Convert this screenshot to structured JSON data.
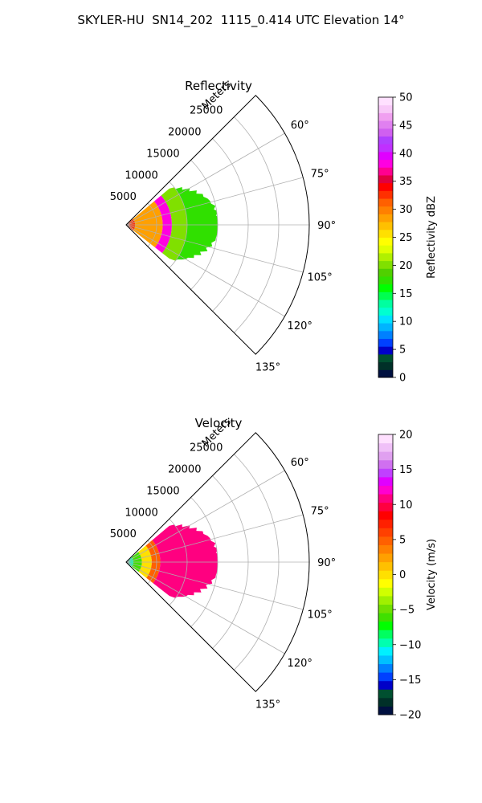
{
  "suptitle": "SKYLER-HU  SN14_202  1115_0.414 UTC Elevation 14°",
  "chart_data": [
    {
      "type": "heatmap",
      "projection": "polar-sector",
      "title": "Reflectivity",
      "radial_label": "Meters",
      "radial_ticks": [
        5000,
        10000,
        15000,
        20000,
        25000
      ],
      "radial_tick_labels": [
        "5000",
        "10000",
        "15000",
        "20000",
        "25000"
      ],
      "rlim": [
        0,
        30000
      ],
      "angle_range_deg": [
        45,
        135
      ],
      "angle_ticks": [
        60,
        75,
        90,
        105,
        120,
        135
      ],
      "angle_tick_labels": [
        "60°",
        "75°",
        "90°",
        "105°",
        "120°",
        "135°"
      ],
      "grid": true,
      "colorbar": {
        "label": "Reflectivity dBZ",
        "range": [
          0,
          50
        ],
        "ticks": [
          0,
          5,
          10,
          15,
          20,
          25,
          30,
          35,
          40,
          45,
          50
        ],
        "tick_labels": [
          "0",
          "5",
          "10",
          "15",
          "20",
          "25",
          "30",
          "35",
          "40",
          "45",
          "50"
        ],
        "colors": [
          "#001040",
          "#003028",
          "#005030",
          "#0000c8",
          "#0040ff",
          "#0080ff",
          "#00b4ff",
          "#00e0ff",
          "#00ffd0",
          "#00ffa0",
          "#00ff50",
          "#00ff00",
          "#30e000",
          "#50d000",
          "#80e000",
          "#b0f000",
          "#e0ff00",
          "#ffff00",
          "#ffe000",
          "#ffc000",
          "#ffa000",
          "#ff8000",
          "#ff6000",
          "#ff3000",
          "#ff0000",
          "#e00040",
          "#ff0090",
          "#ff00e0",
          "#e000ff",
          "#c030ff",
          "#b040ff",
          "#d060f0",
          "#e080f0",
          "#f0a0f0",
          "#f8c8f8",
          "#ffe0ff"
        ]
      },
      "field": {
        "range_extent_m": [
          0,
          15000
        ],
        "rings": [
          {
            "r_m": [
              0,
              1500
            ],
            "value": 33
          },
          {
            "r_m": [
              1500,
              6000
            ],
            "value": 28
          },
          {
            "r_m": [
              6000,
              7500
            ],
            "value": 38
          },
          {
            "r_m": [
              7500,
              10000
            ],
            "value": 20
          },
          {
            "r_m": [
              10000,
              15000
            ],
            "value": 17
          }
        ]
      }
    },
    {
      "type": "heatmap",
      "projection": "polar-sector",
      "title": "Velocity",
      "radial_label": "Meters",
      "radial_ticks": [
        5000,
        10000,
        15000,
        20000,
        25000
      ],
      "radial_tick_labels": [
        "5000",
        "10000",
        "15000",
        "20000",
        "25000"
      ],
      "rlim": [
        0,
        30000
      ],
      "angle_range_deg": [
        45,
        135
      ],
      "angle_ticks": [
        60,
        75,
        90,
        105,
        120,
        135
      ],
      "angle_tick_labels": [
        "60°",
        "75°",
        "90°",
        "105°",
        "120°",
        "135°"
      ],
      "grid": true,
      "colorbar": {
        "label": "Velocity (m/s)",
        "range": [
          -20,
          20
        ],
        "ticks": [
          -20,
          -15,
          -10,
          -5,
          0,
          5,
          10,
          15,
          20
        ],
        "tick_labels": [
          "−20",
          "−15",
          "−10",
          "−5",
          "0",
          "5",
          "10",
          "15",
          "20"
        ],
        "colors": [
          "#001040",
          "#003028",
          "#005030",
          "#0000c8",
          "#0040ff",
          "#0080ff",
          "#00c0ff",
          "#00f0ff",
          "#00ffb0",
          "#00ff60",
          "#00ff00",
          "#40e000",
          "#70e000",
          "#a0f000",
          "#d0ff00",
          "#ffff00",
          "#ffe000",
          "#ffc000",
          "#ffa000",
          "#ff8000",
          "#ff6000",
          "#ff4000",
          "#ff2000",
          "#ff0000",
          "#ff0040",
          "#ff0080",
          "#ff00d0",
          "#e000ff",
          "#c040ff",
          "#d070f0",
          "#e0a0f0",
          "#f0c0f8",
          "#ffe0ff"
        ]
      },
      "field": {
        "range_extent_m": [
          0,
          15000
        ],
        "rings": [
          {
            "r_m": [
              0,
              1200
            ],
            "value": -10
          },
          {
            "r_m": [
              1200,
              2600
            ],
            "value": -6
          },
          {
            "r_m": [
              2600,
              4200
            ],
            "value": 0
          },
          {
            "r_m": [
              4200,
              5600
            ],
            "value": 5
          },
          {
            "r_m": [
              5600,
              15000
            ],
            "value": 11
          }
        ]
      }
    }
  ]
}
